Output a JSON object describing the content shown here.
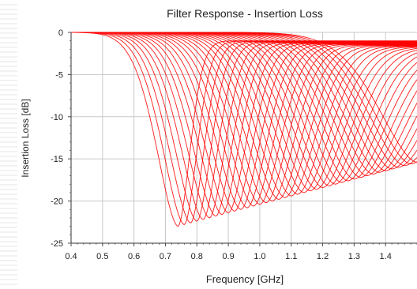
{
  "chart_data": {
    "type": "line",
    "title": "Filter Response - Insertion Loss",
    "xlabel": "Frequency [GHz]",
    "ylabel": "Insertion Loss [dB]",
    "xlim": [
      0.4,
      1.5
    ],
    "ylim": [
      -25,
      0
    ],
    "x_ticks": [
      "0.4",
      "0.5",
      "0.6",
      "0.7",
      "0.8",
      "0.9",
      "1.0",
      "1.1",
      "1.2",
      "1.3",
      "1.4"
    ],
    "y_ticks": [
      "0",
      "-5",
      "-10",
      "-15",
      "-20",
      "-25"
    ],
    "grid": true,
    "series_color": "#ff0000",
    "series": [
      {
        "notch_freq": 0.74,
        "notch_depth": -23.0
      },
      {
        "notch_freq": 0.76,
        "notch_depth": -22.8
      },
      {
        "notch_freq": 0.78,
        "notch_depth": -22.6
      },
      {
        "notch_freq": 0.8,
        "notch_depth": -22.4
      },
      {
        "notch_freq": 0.82,
        "notch_depth": -22.2
      },
      {
        "notch_freq": 0.84,
        "notch_depth": -22.0
      },
      {
        "notch_freq": 0.86,
        "notch_depth": -21.8
      },
      {
        "notch_freq": 0.88,
        "notch_depth": -21.6
      },
      {
        "notch_freq": 0.9,
        "notch_depth": -21.4
      },
      {
        "notch_freq": 0.92,
        "notch_depth": -21.2
      },
      {
        "notch_freq": 0.94,
        "notch_depth": -21.0
      },
      {
        "notch_freq": 0.96,
        "notch_depth": -20.8
      },
      {
        "notch_freq": 0.98,
        "notch_depth": -20.6
      },
      {
        "notch_freq": 1.0,
        "notch_depth": -20.4
      },
      {
        "notch_freq": 1.02,
        "notch_depth": -20.2
      },
      {
        "notch_freq": 1.04,
        "notch_depth": -20.0
      },
      {
        "notch_freq": 1.06,
        "notch_depth": -19.8
      },
      {
        "notch_freq": 1.08,
        "notch_depth": -19.6
      },
      {
        "notch_freq": 1.1,
        "notch_depth": -19.4
      },
      {
        "notch_freq": 1.12,
        "notch_depth": -19.2
      },
      {
        "notch_freq": 1.14,
        "notch_depth": -19.0
      },
      {
        "notch_freq": 1.16,
        "notch_depth": -18.8
      },
      {
        "notch_freq": 1.18,
        "notch_depth": -18.6
      },
      {
        "notch_freq": 1.2,
        "notch_depth": -18.4
      },
      {
        "notch_freq": 1.22,
        "notch_depth": -18.2
      },
      {
        "notch_freq": 1.24,
        "notch_depth": -18.0
      },
      {
        "notch_freq": 1.26,
        "notch_depth": -17.8
      },
      {
        "notch_freq": 1.28,
        "notch_depth": -17.6
      },
      {
        "notch_freq": 1.3,
        "notch_depth": -17.4
      },
      {
        "notch_freq": 1.32,
        "notch_depth": -17.2
      },
      {
        "notch_freq": 1.34,
        "notch_depth": -17.0
      },
      {
        "notch_freq": 1.36,
        "notch_depth": -16.8
      },
      {
        "notch_freq": 1.38,
        "notch_depth": -16.6
      },
      {
        "notch_freq": 1.4,
        "notch_depth": -16.4
      },
      {
        "notch_freq": 1.42,
        "notch_depth": -16.2
      },
      {
        "notch_freq": 1.44,
        "notch_depth": -16.0
      },
      {
        "notch_freq": 1.46,
        "notch_depth": -15.8
      },
      {
        "notch_freq": 1.48,
        "notch_depth": -15.6
      },
      {
        "notch_freq": 1.5,
        "notch_depth": -15.4
      }
    ]
  }
}
